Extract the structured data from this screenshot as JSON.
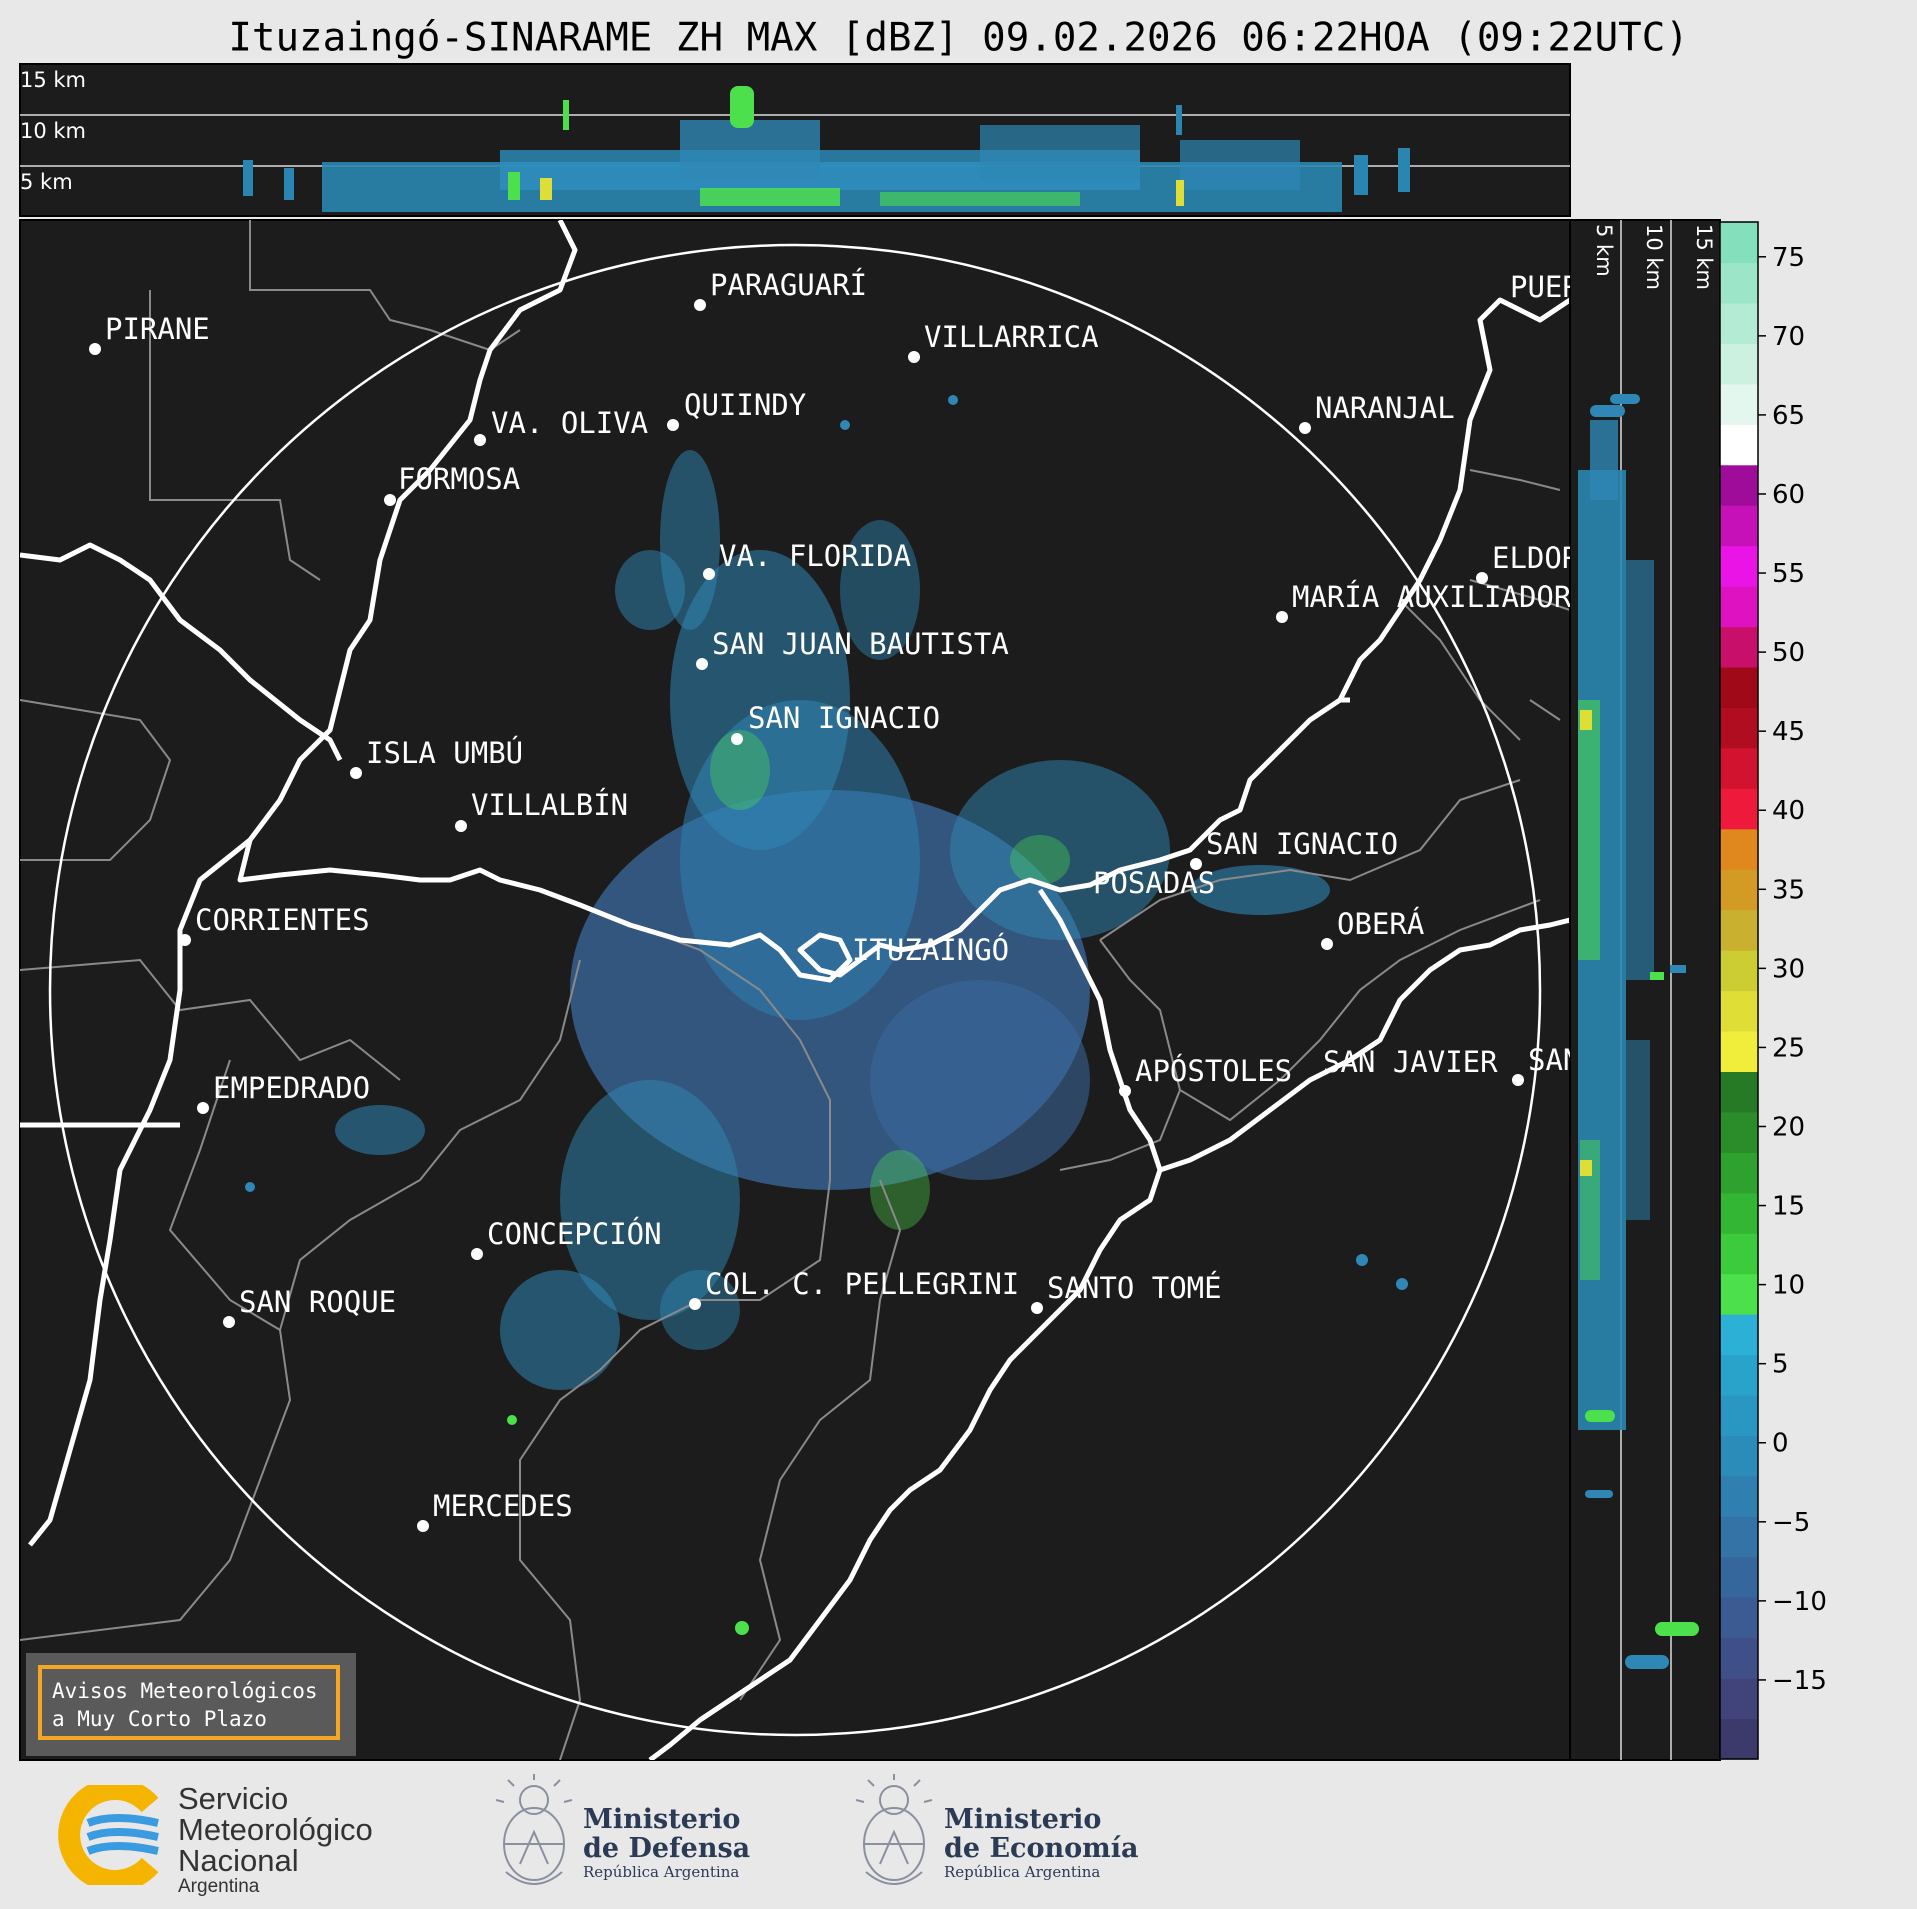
{
  "header": {
    "title": "Ituzaingó-SINARAME ZH MAX [dBZ] 09.02.2026 06:22HOA (09:22UTC)"
  },
  "top_panel": {
    "height_labels": [
      "15 km",
      "10 km",
      "5 km"
    ]
  },
  "side_panel": {
    "height_labels": [
      "5 km",
      "10 km",
      "15 km"
    ]
  },
  "colorbar": {
    "tick_labels": [
      "75",
      "70",
      "65",
      "60",
      "55",
      "50",
      "45",
      "40",
      "35",
      "30",
      "25",
      "20",
      "15",
      "10",
      "5",
      "0",
      "−5",
      "−10",
      "−15"
    ],
    "colors": [
      "#3b3a6b",
      "#41447a",
      "#3f4f87",
      "#3b5b92",
      "#36679c",
      "#3373a6",
      "#2f7fb0",
      "#2b8bb9",
      "#2a97c2",
      "#29a3ca",
      "#2cb0d6",
      "#4de04d",
      "#3ccb3c",
      "#33b633",
      "#2ea12e",
      "#2a8d2a",
      "#267a26",
      "#f0ee3a",
      "#dede36",
      "#cccc33",
      "#c9b02e",
      "#d39a24",
      "#e0871d",
      "#ee1a3c",
      "#d2132f",
      "#b10d21",
      "#a00a18",
      "#c8106a",
      "#de12c0",
      "#ea14e6",
      "#c611b8",
      "#a00c9a",
      "#ffffff",
      "#e4f7ee",
      "#ccf1e1",
      "#b4ebd5",
      "#9ce5c8",
      "#84dfbc"
    ]
  },
  "map": {
    "cities": [
      {
        "name": "PIRANE"
      },
      {
        "name": "PARAGUARÍ"
      },
      {
        "name": "VILLARRICA"
      },
      {
        "name": "QUIINDY"
      },
      {
        "name": "VA. OLIVA"
      },
      {
        "name": "FORMOSA"
      },
      {
        "name": "NARANJAL"
      },
      {
        "name": "PUERTO"
      },
      {
        "name": "VA. FLORIDA"
      },
      {
        "name": "ELDORADO"
      },
      {
        "name": "MARÍA AUXILIADORA"
      },
      {
        "name": "SAN JUAN BAUTISTA"
      },
      {
        "name": "SAN IGNACIO"
      },
      {
        "name": "ISLA UMBÚ"
      },
      {
        "name": "VILLALBÍN"
      },
      {
        "name": "SAN IGNACIO"
      },
      {
        "name": "POSADAS"
      },
      {
        "name": "CORRIENTES"
      },
      {
        "name": "ITUZAINGÓ"
      },
      {
        "name": "OBERÁ"
      },
      {
        "name": "APÓSTOLES"
      },
      {
        "name": "SAN JAVIER"
      },
      {
        "name": "SAN"
      },
      {
        "name": "EMPEDRADO"
      },
      {
        "name": "CONCEPCIÓN"
      },
      {
        "name": "COL. C. PELLEGRINI"
      },
      {
        "name": "SANTO TOMÉ"
      },
      {
        "name": "SAN ROQUE"
      },
      {
        "name": "MERCEDES"
      }
    ]
  },
  "warning_box": {
    "line1": "Avisos Meteorológicos",
    "line2": "a Muy Corto Plazo"
  },
  "footer": {
    "smn": {
      "line1": "Servicio",
      "line2": "Meteorológico",
      "line3": "Nacional",
      "line4": "Argentina"
    },
    "defensa": {
      "line1": "Ministerio",
      "line2": "de Defensa",
      "line3": "República Argentina"
    },
    "economia": {
      "line1": "Ministerio",
      "line2": "de Economía",
      "line3": "República Argentina"
    }
  }
}
